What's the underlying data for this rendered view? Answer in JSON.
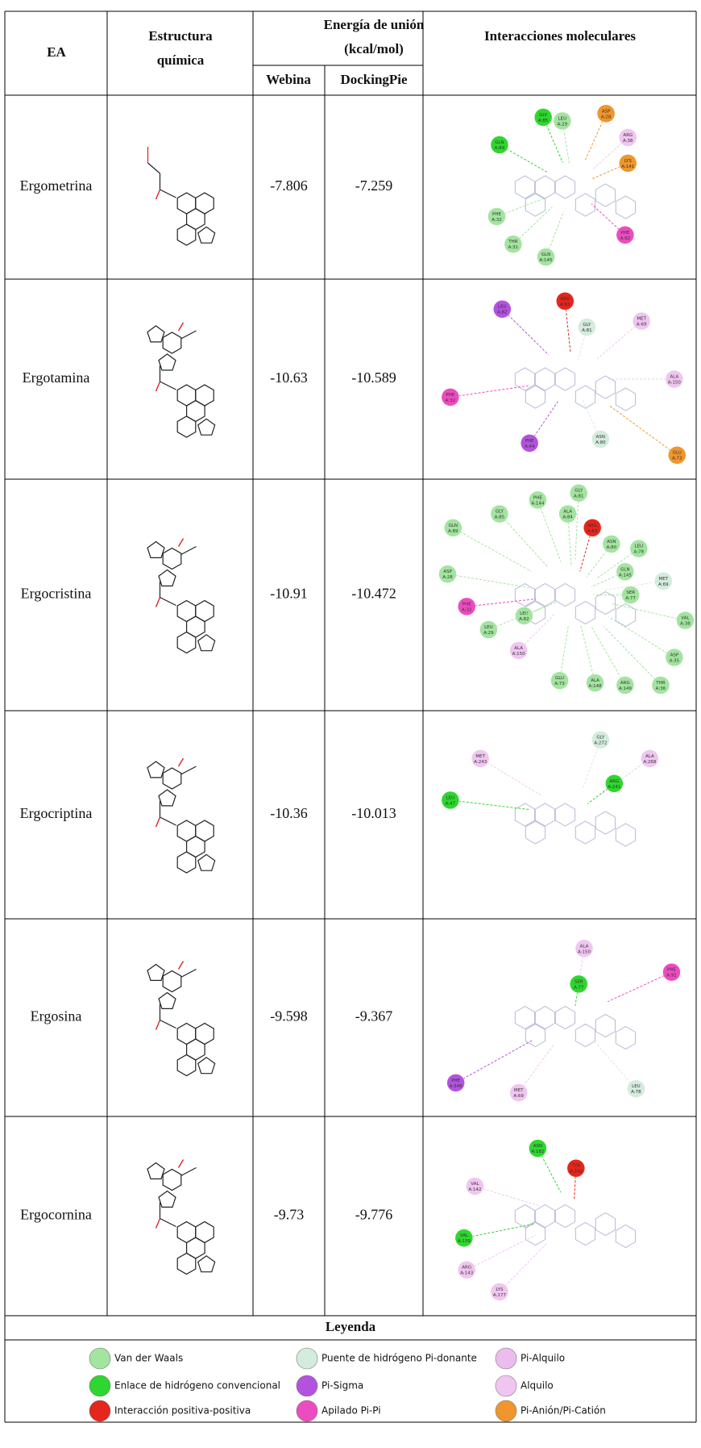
{
  "header": {
    "ea": "EA",
    "structure": [
      "Estructura",
      "química"
    ],
    "energy": [
      "Energía de unión",
      "(kcal/mol)"
    ],
    "webina": "Webina",
    "dockingpie": "DockingPie",
    "interactions": "Interacciones moleculares"
  },
  "rows": [
    {
      "name": "Ergometrina",
      "webina": -7.806,
      "dockingpie": -7.259,
      "residues": [
        {
          "name": "GLY",
          "id": "A:85",
          "type": "hbond"
        },
        {
          "name": "LEU",
          "id": "A:29",
          "type": "vdw"
        },
        {
          "name": "ASP",
          "id": "A:28",
          "type": "pianion"
        },
        {
          "name": "GLN",
          "id": "A:89",
          "type": "hbond"
        },
        {
          "name": "ARG",
          "id": "A:38",
          "type": "alkyl"
        },
        {
          "name": "LYS",
          "id": "A:141",
          "type": "pianion"
        },
        {
          "name": "PHE",
          "id": "A:32",
          "type": "vdw"
        },
        {
          "name": "THR",
          "id": "A:31",
          "type": "vdw"
        },
        {
          "name": "GLN",
          "id": "A:145",
          "type": "vdw"
        },
        {
          "name": "PHE",
          "id": "A:92",
          "type": "pipi"
        }
      ]
    },
    {
      "name": "Ergotamina",
      "webina": -10.63,
      "dockingpie": -10.589,
      "residues": [
        {
          "name": "LEU",
          "id": "A:82",
          "type": "pisigma"
        },
        {
          "name": "ARG",
          "id": "A:83",
          "type": "pos"
        },
        {
          "name": "GLY",
          "id": "A:81",
          "type": "pidonor"
        },
        {
          "name": "MET",
          "id": "A:69",
          "type": "alkyl"
        },
        {
          "name": "ALA",
          "id": "A:150",
          "type": "alkyl"
        },
        {
          "name": "PHE",
          "id": "A:32",
          "type": "pipi"
        },
        {
          "name": "PHE",
          "id": "A:44",
          "type": "pisigma"
        },
        {
          "name": "ASN",
          "id": "A:80",
          "type": "pidonor"
        },
        {
          "name": "GLU",
          "id": "A:73",
          "type": "pianion"
        }
      ]
    },
    {
      "name": "Ergocristina",
      "webina": -10.91,
      "dockingpie": -10.472,
      "residues": [
        {
          "name": "PHE",
          "id": "A:144",
          "type": "vdw"
        },
        {
          "name": "GLY",
          "id": "A:81",
          "type": "vdw"
        },
        {
          "name": "GLY",
          "id": "A:85",
          "type": "vdw"
        },
        {
          "name": "GLN",
          "id": "A:89",
          "type": "vdw"
        },
        {
          "name": "ALA",
          "id": "A:84",
          "type": "vdw"
        },
        {
          "name": "ARG",
          "id": "A:83",
          "type": "pos"
        },
        {
          "name": "ASN",
          "id": "A:80",
          "type": "vdw"
        },
        {
          "name": "LEU",
          "id": "A:78",
          "type": "vdw"
        },
        {
          "name": "ASP",
          "id": "A:28",
          "type": "vdw"
        },
        {
          "name": "GLN",
          "id": "A:145",
          "type": "vdw"
        },
        {
          "name": "MET",
          "id": "A:69",
          "type": "pidonor"
        },
        {
          "name": "SER",
          "id": "A:77",
          "type": "vdw"
        },
        {
          "name": "PHE",
          "id": "A:32",
          "type": "pipi"
        },
        {
          "name": "LEU",
          "id": "A:82",
          "type": "vdw"
        },
        {
          "name": "VAL",
          "id": "A:38",
          "type": "vdw"
        },
        {
          "name": "LEU",
          "id": "A:29",
          "type": "vdw"
        },
        {
          "name": "ALA",
          "id": "A:150",
          "type": "alkyl"
        },
        {
          "name": "ASP",
          "id": "A:35",
          "type": "vdw"
        },
        {
          "name": "GLU",
          "id": "A:73",
          "type": "vdw"
        },
        {
          "name": "ALA",
          "id": "A:148",
          "type": "vdw"
        },
        {
          "name": "ARG",
          "id": "A:149",
          "type": "vdw"
        },
        {
          "name": "THR",
          "id": "A:36",
          "type": "vdw"
        }
      ]
    },
    {
      "name": "Ergocriptina",
      "webina": -10.36,
      "dockingpie": -10.013,
      "residues": [
        {
          "name": "GLY",
          "id": "A:272",
          "type": "pidonor"
        },
        {
          "name": "MET",
          "id": "A:243",
          "type": "alkyl"
        },
        {
          "name": "ALA",
          "id": "A:268",
          "type": "alkyl"
        },
        {
          "name": "ARG",
          "id": "A:241",
          "type": "hbond"
        },
        {
          "name": "LEU",
          "id": "A:47",
          "type": "hbond"
        }
      ]
    },
    {
      "name": "Ergosina",
      "webina": -9.598,
      "dockingpie": -9.367,
      "residues": [
        {
          "name": "ALA",
          "id": "A:150",
          "type": "alkyl"
        },
        {
          "name": "PHE",
          "id": "A:92",
          "type": "pipi"
        },
        {
          "name": "SER",
          "id": "A:77",
          "type": "hbond"
        },
        {
          "name": "PHE",
          "id": "A:346",
          "type": "pisigma"
        },
        {
          "name": "MET",
          "id": "A:69",
          "type": "alkyl"
        },
        {
          "name": "LEU",
          "id": "A:78",
          "type": "pidonor"
        }
      ]
    },
    {
      "name": "Ergocornina",
      "webina": -9.73,
      "dockingpie": -9.776,
      "residues": [
        {
          "name": "ASN",
          "id": "A:182",
          "type": "hbond"
        },
        {
          "name": "TYR",
          "id": "A:242",
          "type": "pos"
        },
        {
          "name": "VAL",
          "id": "A:142",
          "type": "alkyl"
        },
        {
          "name": "VAL",
          "id": "A:139",
          "type": "hbond"
        },
        {
          "name": "ARG",
          "id": "A:143",
          "type": "alkyl"
        },
        {
          "name": "LYS",
          "id": "A:177",
          "type": "alkyl"
        }
      ]
    }
  ],
  "legend": {
    "title": "Leyenda",
    "items": [
      {
        "label": "Van der Waals",
        "type": "vdw",
        "color": "#a3e4a0"
      },
      {
        "label": "Enlace de hidrógeno convencional",
        "type": "hbond",
        "color": "#2fd62f"
      },
      {
        "label": "Interacción positiva-positiva",
        "type": "pos",
        "color": "#e4261c"
      },
      {
        "label": "Puente de hidrógeno Pi-donante",
        "type": "pidonor",
        "color": "#d4ecdd"
      },
      {
        "label": "Pi-Sigma",
        "type": "pisigma",
        "color": "#b452e0"
      },
      {
        "label": "Apilado Pi-Pi",
        "type": "pipi",
        "color": "#ec4cc0"
      },
      {
        "label": "Pi-Alquilo",
        "type": "pialkyl",
        "color": "#ecbcec"
      },
      {
        "label": "Alquilo",
        "type": "alkyl",
        "color": "#f0c6f0"
      },
      {
        "label": "Pi-Anión/Pi-Catión",
        "type": "pianion",
        "color": "#f0962c"
      }
    ]
  }
}
